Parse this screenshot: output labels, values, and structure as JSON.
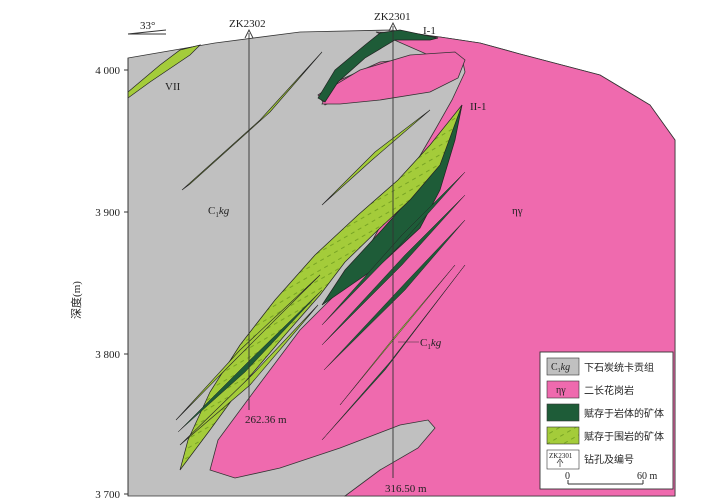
{
  "figure": {
    "dip_label": "33°",
    "y_axis_label": "深度(m)",
    "y_ticks": [
      "4 000",
      "3 900",
      "3 800",
      "3 700"
    ],
    "boreholes": [
      {
        "id": "ZK2302",
        "depth_label": "262.36 m"
      },
      {
        "id": "ZK2301",
        "depth_label": "316.50 m"
      }
    ],
    "orebody_labels": [
      "I-1",
      "II-1",
      "VII"
    ],
    "unit_labels": {
      "strata_main": "C",
      "strata_sub": "1",
      "strata_suffix": "kg",
      "granite": "ηγ"
    },
    "scale": {
      "zero": "0",
      "length": "60 m"
    }
  },
  "legend": [
    {
      "symbol": "C1kg",
      "symbol_main": "C",
      "symbol_sub": "1",
      "symbol_suffix": "kg",
      "label": "下石炭统卡贡组",
      "color": "#c0c0c0"
    },
    {
      "symbol": "ηγ",
      "label": "二长花岗岩",
      "color": "#ef6aae"
    },
    {
      "symbol": "",
      "label": "赋存于岩体的矿体",
      "color": "#1e5c38"
    },
    {
      "symbol": "",
      "label": "赋存于围岩的矿体",
      "color": "#a4cc3a"
    },
    {
      "symbol": "ZK2301",
      "label": "钻孔及编号",
      "color": "#ffffff"
    }
  ],
  "colors": {
    "strata": "#c0c0c0",
    "granite": "#ef6aae",
    "ore_in_intrusion": "#1e5c38",
    "ore_in_wallrock": "#a4cc3a"
  }
}
